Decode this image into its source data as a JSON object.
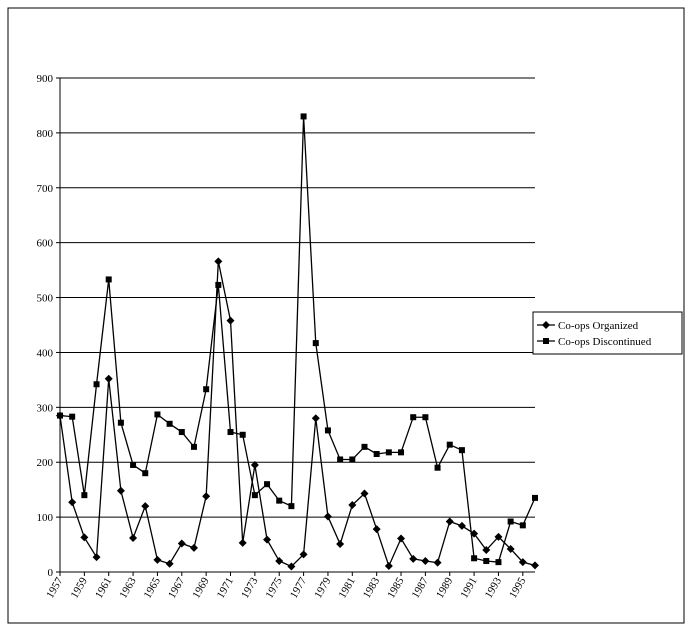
{
  "chart_data": {
    "type": "line",
    "x": [
      1957,
      1958,
      1959,
      1960,
      1961,
      1962,
      1963,
      1964,
      1965,
      1966,
      1967,
      1968,
      1969,
      1970,
      1971,
      1972,
      1973,
      1974,
      1975,
      1976,
      1977,
      1978,
      1979,
      1980,
      1981,
      1982,
      1983,
      1984,
      1985,
      1986,
      1987,
      1988,
      1989,
      1990,
      1991,
      1992,
      1993,
      1994,
      1995,
      1996
    ],
    "xlim": [
      1957,
      1996
    ],
    "xticks": [
      1957,
      1959,
      1961,
      1963,
      1965,
      1967,
      1969,
      1971,
      1973,
      1975,
      1977,
      1979,
      1981,
      1983,
      1985,
      1987,
      1989,
      1991,
      1993,
      1995
    ],
    "ylim": [
      0,
      900
    ],
    "yticks": [
      0,
      100,
      200,
      300,
      400,
      500,
      600,
      700,
      800,
      900
    ],
    "grid": true,
    "legend": "right",
    "series": [
      {
        "name": "Co-ops Organized",
        "color": "#000000",
        "marker": "diamond",
        "values": [
          285,
          127,
          63,
          27,
          352,
          148,
          62,
          120,
          22,
          15,
          52,
          44,
          138,
          566,
          458,
          53,
          195,
          59,
          20,
          10,
          32,
          280,
          101,
          51,
          122,
          143,
          78,
          11,
          61,
          24,
          20,
          17,
          92,
          84,
          70,
          40,
          64,
          42,
          18,
          12
        ]
      },
      {
        "name": "Co-ops Discontinued",
        "color": "#000000",
        "marker": "square",
        "values": [
          285,
          283,
          140,
          342,
          533,
          272,
          195,
          180,
          287,
          270,
          255,
          228,
          333,
          523,
          255,
          250,
          140,
          160,
          130,
          120,
          830,
          417,
          258,
          205,
          205,
          228,
          215,
          218,
          218,
          282,
          282,
          190,
          232,
          222,
          25,
          20,
          18,
          92,
          85,
          135
        ]
      }
    ]
  }
}
